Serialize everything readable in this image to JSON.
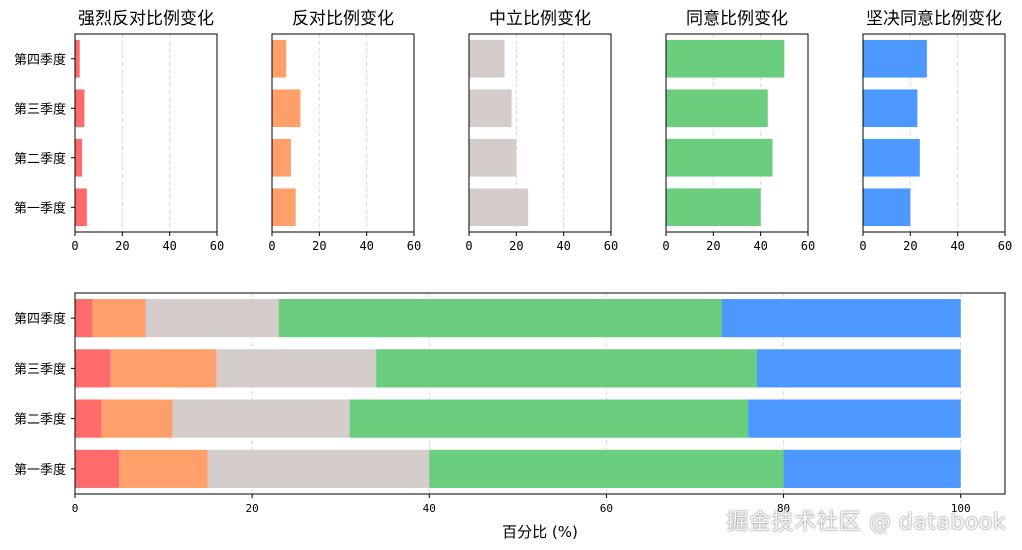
{
  "colors": {
    "strongly_disagree": "#ff6b6b",
    "disagree": "#ffa06b",
    "neutral": "#d5cccc",
    "agree": "#6bcd7e",
    "strongly_agree": "#4d98ff"
  },
  "chart_data": [
    {
      "type": "bar",
      "orientation": "horizontal",
      "title": "强烈反对比例变化",
      "categories": [
        "第一季度",
        "第二季度",
        "第三季度",
        "第四季度"
      ],
      "values": [
        5,
        3,
        4,
        2
      ],
      "xlim": [
        0,
        60
      ],
      "xticks": [
        0,
        20,
        40,
        60
      ],
      "grid": "vertical-dashed",
      "color": "#ff6b6b"
    },
    {
      "type": "bar",
      "orientation": "horizontal",
      "title": "反对比例变化",
      "categories": [
        "第一季度",
        "第二季度",
        "第三季度",
        "第四季度"
      ],
      "values": [
        10,
        8,
        12,
        6
      ],
      "xlim": [
        0,
        60
      ],
      "xticks": [
        0,
        20,
        40,
        60
      ],
      "grid": "vertical-dashed",
      "color": "#ffa06b"
    },
    {
      "type": "bar",
      "orientation": "horizontal",
      "title": "中立比例变化",
      "categories": [
        "第一季度",
        "第二季度",
        "第三季度",
        "第四季度"
      ],
      "values": [
        25,
        20,
        18,
        15
      ],
      "xlim": [
        0,
        60
      ],
      "xticks": [
        0,
        20,
        40,
        60
      ],
      "grid": "vertical-dashed",
      "color": "#d5cccc"
    },
    {
      "type": "bar",
      "orientation": "horizontal",
      "title": "同意比例变化",
      "categories": [
        "第一季度",
        "第二季度",
        "第三季度",
        "第四季度"
      ],
      "values": [
        40,
        45,
        43,
        50
      ],
      "xlim": [
        0,
        60
      ],
      "xticks": [
        0,
        20,
        40,
        60
      ],
      "grid": "vertical-dashed",
      "color": "#6bcd7e"
    },
    {
      "type": "bar",
      "orientation": "horizontal",
      "title": "坚决同意比例变化",
      "categories": [
        "第一季度",
        "第二季度",
        "第三季度",
        "第四季度"
      ],
      "values": [
        20,
        24,
        23,
        27
      ],
      "xlim": [
        0,
        60
      ],
      "xticks": [
        0,
        20,
        40,
        60
      ],
      "grid": "vertical-dashed",
      "color": "#4d98ff"
    },
    {
      "type": "bar",
      "orientation": "horizontal",
      "stacked": true,
      "title": "",
      "xlabel": "百分比 (%)",
      "categories": [
        "第一季度",
        "第二季度",
        "第三季度",
        "第四季度"
      ],
      "series": [
        {
          "values": [
            5,
            3,
            4,
            2
          ],
          "color": "#ff6b6b"
        },
        {
          "values": [
            10,
            8,
            12,
            6
          ],
          "color": "#ffa06b"
        },
        {
          "values": [
            25,
            20,
            18,
            15
          ],
          "color": "#d5cccc"
        },
        {
          "values": [
            40,
            45,
            43,
            50
          ],
          "color": "#6bcd7e"
        },
        {
          "values": [
            20,
            24,
            23,
            27
          ],
          "color": "#4d98ff"
        }
      ],
      "xlim": [
        0,
        105
      ],
      "xticks": [
        0,
        20,
        40,
        60,
        80,
        100
      ],
      "grid": "vertical-dashed"
    }
  ],
  "watermark": "掘金技术社区 @ databook"
}
